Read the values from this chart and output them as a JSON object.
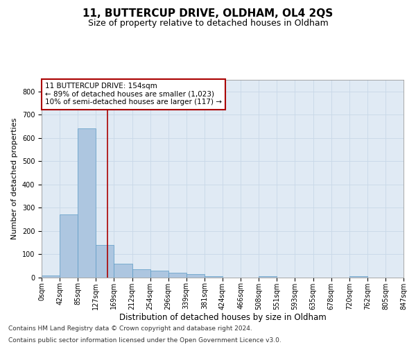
{
  "title": "11, BUTTERCUP DRIVE, OLDHAM, OL4 2QS",
  "subtitle": "Size of property relative to detached houses in Oldham",
  "xlabel": "Distribution of detached houses by size in Oldham",
  "ylabel": "Number of detached properties",
  "footnote1": "Contains HM Land Registry data © Crown copyright and database right 2024.",
  "footnote2": "Contains public sector information licensed under the Open Government Licence v3.0.",
  "bin_labels": [
    "0sqm",
    "42sqm",
    "85sqm",
    "127sqm",
    "169sqm",
    "212sqm",
    "254sqm",
    "296sqm",
    "339sqm",
    "381sqm",
    "424sqm",
    "466sqm",
    "508sqm",
    "551sqm",
    "593sqm",
    "635sqm",
    "678sqm",
    "720sqm",
    "762sqm",
    "805sqm",
    "847sqm"
  ],
  "bar_values": [
    10,
    270,
    640,
    140,
    60,
    35,
    30,
    20,
    15,
    5,
    0,
    0,
    5,
    0,
    0,
    0,
    0,
    5,
    0,
    0
  ],
  "bar_color": "#adc6e0",
  "bar_edge_color": "#5a9ac5",
  "grid_color": "#c8d8e8",
  "background_color": "#e0eaf4",
  "vline_color": "#aa0000",
  "annotation_text": "11 BUTTERCUP DRIVE: 154sqm\n← 89% of detached houses are smaller (1,023)\n10% of semi-detached houses are larger (117) →",
  "annotation_box_color": "#ffffff",
  "annotation_box_edge": "#aa0000",
  "ylim": [
    0,
    850
  ],
  "yticks": [
    0,
    100,
    200,
    300,
    400,
    500,
    600,
    700,
    800
  ],
  "title_fontsize": 11,
  "subtitle_fontsize": 9,
  "xlabel_fontsize": 8.5,
  "ylabel_fontsize": 8,
  "tick_fontsize": 7,
  "annotation_fontsize": 7.5,
  "footnote_fontsize": 6.5
}
